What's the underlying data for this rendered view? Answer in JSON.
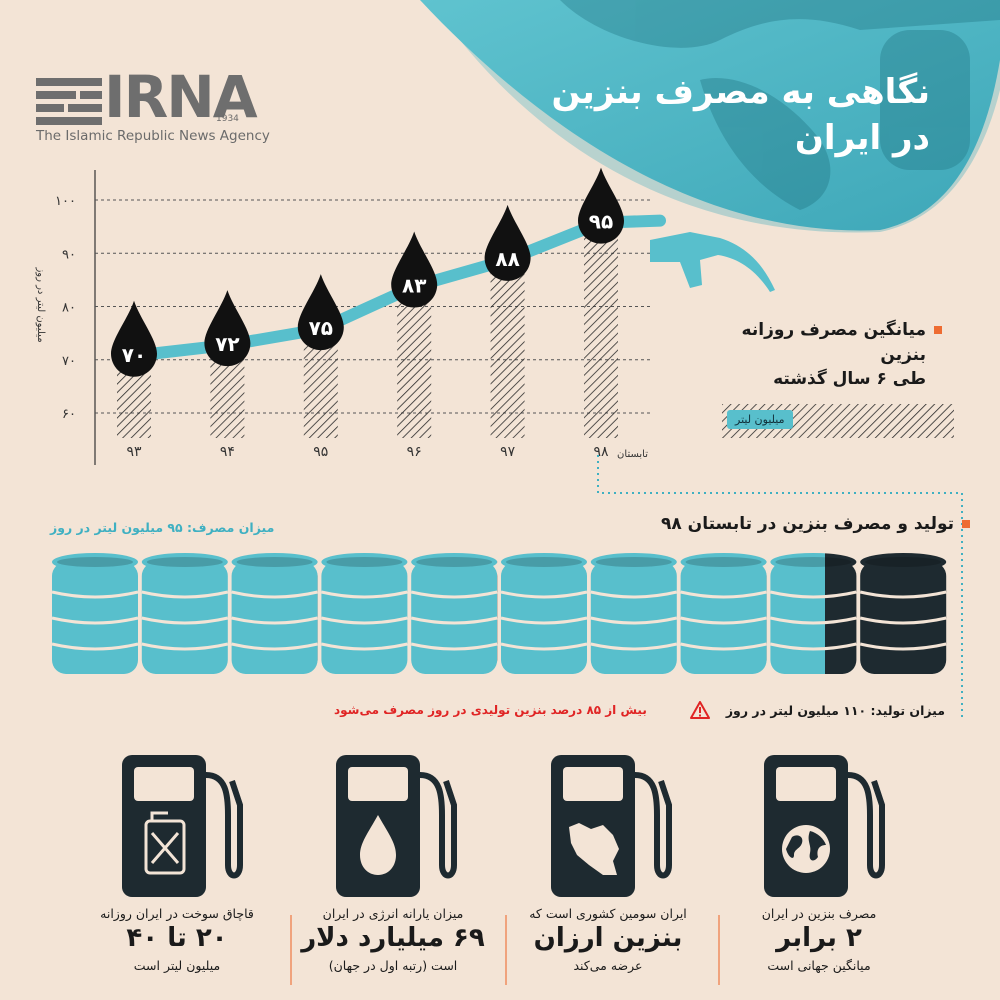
{
  "brand": {
    "logo_text": "IRNA",
    "logo_year": "1934",
    "tagline": "The Islamic Republic News Agency"
  },
  "header": {
    "title_line1": "نگاهی به مصرف بنزین",
    "title_line2": "در ایران"
  },
  "colors": {
    "background": "#f3e4d6",
    "teal": "#58bfcc",
    "dark": "#1e2a30",
    "orange": "#ee6c32",
    "red": "#e02424"
  },
  "chart_data": {
    "type": "line",
    "categories": [
      "۹۳",
      "۹۴",
      "۹۵",
      "۹۶",
      "۹۷",
      "۹۸"
    ],
    "category_note": "تابستان",
    "values": [
      70,
      72,
      75,
      83,
      88,
      95
    ],
    "value_labels": [
      "۷۰",
      "۷۲",
      "۷۵",
      "۸۳",
      "۸۸",
      "۹۵"
    ],
    "y_ticks": [
      60,
      70,
      80,
      90,
      100
    ],
    "y_tick_labels": [
      "۶۰",
      "۷۰",
      "۸۰",
      "۹۰",
      "۱۰۰"
    ],
    "ylim": [
      50,
      105
    ],
    "ylabel": "میلیون لیتر در روز",
    "grid": true,
    "legend": {
      "line1": "میانگین مصرف روزانه",
      "line2": "بنزین",
      "line3": "طی ۶ سال گذشته",
      "unit": "میلیون لیتر"
    }
  },
  "production_section": {
    "title": "تولید و مصرف بنزین در تابستان ۹۸",
    "consumption_label": "میزان مصرف: ۹۵ میلیون لیتر در روز",
    "production_label": "میزان تولید: ۱۱۰ میلیون لیتر در روز",
    "warning": "بیش از ۸۵ درصد بنزین تولیدی در روز مصرف می‌شود",
    "consumption_value": 95,
    "production_value": 110,
    "barrel_count": 10
  },
  "stats": [
    {
      "icon": "jerrycan-icon",
      "line1": "قاچاق سوخت در ایران روزانه",
      "big": "۲۰ تا ۴۰",
      "line3": "میلیون لیتر است"
    },
    {
      "icon": "drop-icon",
      "line1": "میزان یارانه انرژی در ایران",
      "big": "۶۹ میلیارد دلار",
      "line3": "است (رتبه اول در جهان)"
    },
    {
      "icon": "iran-map-icon",
      "line1": "ایران سومین کشوری است که",
      "big": "بنزین ارزان",
      "line3": "عرضه می‌کند"
    },
    {
      "icon": "globe-icon",
      "line1": "مصرف بنزین در ایران",
      "big": "۲ برابر",
      "line3": "میانگین جهانی است"
    }
  ]
}
